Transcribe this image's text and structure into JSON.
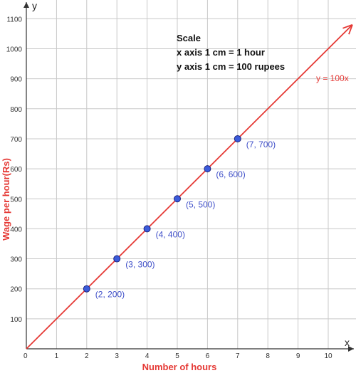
{
  "chart_data": {
    "type": "line",
    "xlabel": "Number of hours",
    "ylabel": "Wage per hour(Rs)",
    "x_axis_name": "x",
    "y_axis_name": "y",
    "origin_label": "0",
    "xlim": [
      0,
      11
    ],
    "ylim": [
      0,
      1130
    ],
    "x_ticks": [
      1,
      2,
      3,
      4,
      5,
      6,
      7,
      8,
      9,
      10
    ],
    "y_ticks": [
      100,
      200,
      300,
      400,
      500,
      600,
      700,
      800,
      900,
      1000,
      1100
    ],
    "grid": true,
    "series": [
      {
        "name": "y = 100x",
        "line_color": "#e53935",
        "point_color": "#3b5bdb",
        "points": [
          {
            "x": 2,
            "y": 200,
            "label": "(2, 200)"
          },
          {
            "x": 3,
            "y": 300,
            "label": "(3, 300)"
          },
          {
            "x": 4,
            "y": 400,
            "label": "(4, 400)"
          },
          {
            "x": 5,
            "y": 500,
            "label": "(5, 500)"
          },
          {
            "x": 6,
            "y": 600,
            "label": "(6, 600)"
          },
          {
            "x": 7,
            "y": 700,
            "label": "(7, 700)"
          }
        ]
      }
    ],
    "scale_note": {
      "title": "Scale",
      "lines": [
        "x axis 1 cm = 1 hour",
        "y axis 1 cm = 100 rupees"
      ]
    }
  },
  "colors": {
    "grid": "#c8c8c8",
    "axis": "#333333",
    "line": "#e53935",
    "point_fill": "#3b5bdb",
    "point_label": "#3f4fc9"
  }
}
